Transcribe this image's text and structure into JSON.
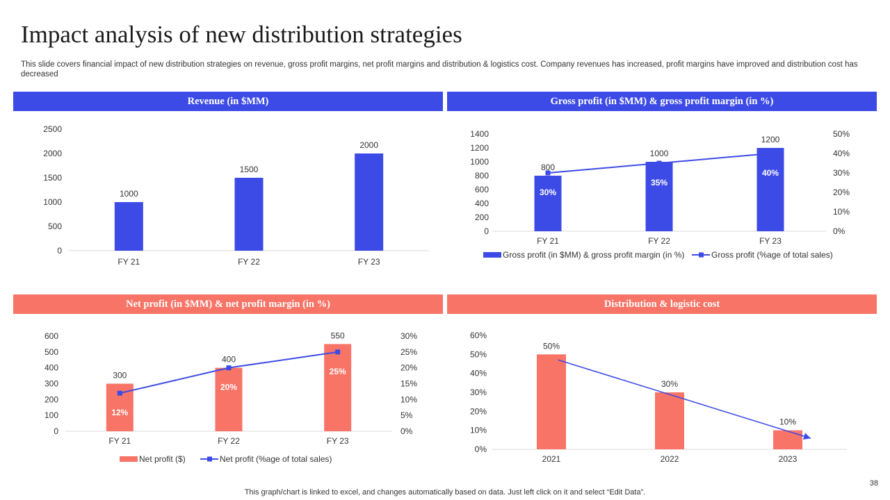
{
  "title": "Impact analysis of new distribution strategies",
  "subtitle": "This slide covers financial impact of new distribution strategies on revenue, gross profit margins, net profit margins and distribution & logistics cost. Company revenues has increased, profit margins have improved and distribution cost has decreased",
  "headers": {
    "revenue": "Revenue (in $MM)",
    "gross": "Gross profit  (in $MM) & gross profit  margin  (in %)",
    "net": "Net profit  (in $MM) & net profit  margin  (in %)",
    "dist": "Distribution  & logistic cost"
  },
  "colors": {
    "blue": "#3d4be6",
    "coral": "#f77467",
    "line": "#3d4be6"
  },
  "footnote": "This graph/chart is linked to excel,  and changes automatically based on data. Just left click on it and select “Edit Data”.",
  "page_number": "38",
  "chart_data": [
    {
      "id": "revenue",
      "type": "bar",
      "title": "Revenue (in $MM)",
      "categories": [
        "FY 21",
        "FY 22",
        "FY 23"
      ],
      "values": [
        1000,
        1500,
        2000
      ],
      "data_labels": [
        "1000",
        "1500",
        "2000"
      ],
      "ylim": [
        0,
        2500
      ],
      "yticks": [
        0,
        500,
        1000,
        1500,
        2000,
        2500
      ],
      "ytick_labels": [
        "0",
        "500",
        "1000",
        "1500",
        "2000",
        "2500"
      ]
    },
    {
      "id": "gross",
      "type": "bar",
      "title": "Gross profit  (in $MM) & gross profit  margin  (in %)",
      "categories": [
        "FY 21",
        "FY 22",
        "FY 23"
      ],
      "series": [
        {
          "name": "Gross profit (in $MM) & gross profit margin (in %)",
          "kind": "bar",
          "values": [
            800,
            1000,
            1200
          ],
          "data_labels": [
            "800",
            "1000",
            "1200"
          ]
        },
        {
          "name": "Gross profit (%age of total sales)",
          "kind": "line",
          "axis": "secondary",
          "values": [
            30,
            35,
            40
          ],
          "data_labels": [
            "30%",
            "35%",
            "40%"
          ]
        }
      ],
      "ylim": [
        0,
        1400
      ],
      "yticks": [
        0,
        200,
        400,
        600,
        800,
        1000,
        1200,
        1400
      ],
      "ytick_labels": [
        "0",
        "200",
        "400",
        "600",
        "800",
        "1000",
        "1200",
        "1400"
      ],
      "y2lim": [
        0,
        50
      ],
      "y2ticks": [
        0,
        10,
        20,
        30,
        40,
        50
      ],
      "y2tick_labels": [
        "0%",
        "10%",
        "20%",
        "30%",
        "40%",
        "50%"
      ],
      "legend": "bottom"
    },
    {
      "id": "net",
      "type": "bar",
      "title": "Net profit  (in $MM) & net profit  margin  (in %)",
      "categories": [
        "FY 21",
        "FY 22",
        "FY 23"
      ],
      "series": [
        {
          "name": "Net profit ($)",
          "kind": "bar",
          "values": [
            300,
            400,
            550
          ],
          "data_labels": [
            "300",
            "400",
            "550"
          ]
        },
        {
          "name": "Net profit (%age of total sales)",
          "kind": "line",
          "axis": "secondary",
          "values": [
            12,
            20,
            25
          ],
          "data_labels": [
            "12%",
            "20%",
            "25%"
          ]
        }
      ],
      "ylim": [
        0,
        600
      ],
      "yticks": [
        0,
        100,
        200,
        300,
        400,
        500,
        600
      ],
      "ytick_labels": [
        "0",
        "100",
        "200",
        "300",
        "400",
        "500",
        "600"
      ],
      "y2lim": [
        0,
        30
      ],
      "y2ticks": [
        0,
        5,
        10,
        15,
        20,
        25,
        30
      ],
      "y2tick_labels": [
        "0%",
        "5%",
        "10%",
        "15%",
        "20%",
        "25%",
        "30%"
      ],
      "legend": "bottom"
    },
    {
      "id": "dist",
      "type": "bar",
      "title": "Distribution  & logistic cost",
      "categories": [
        "2021",
        "2022",
        "2023"
      ],
      "values": [
        50,
        30,
        10
      ],
      "data_labels": [
        "50%",
        "30%",
        "10%"
      ],
      "ylim": [
        0,
        60
      ],
      "yticks": [
        0,
        10,
        20,
        30,
        40,
        50,
        60
      ],
      "ytick_labels": [
        "0%",
        "10%",
        "20%",
        "30%",
        "40%",
        "50%",
        "60%"
      ],
      "annotation": "downward trend arrow"
    }
  ]
}
